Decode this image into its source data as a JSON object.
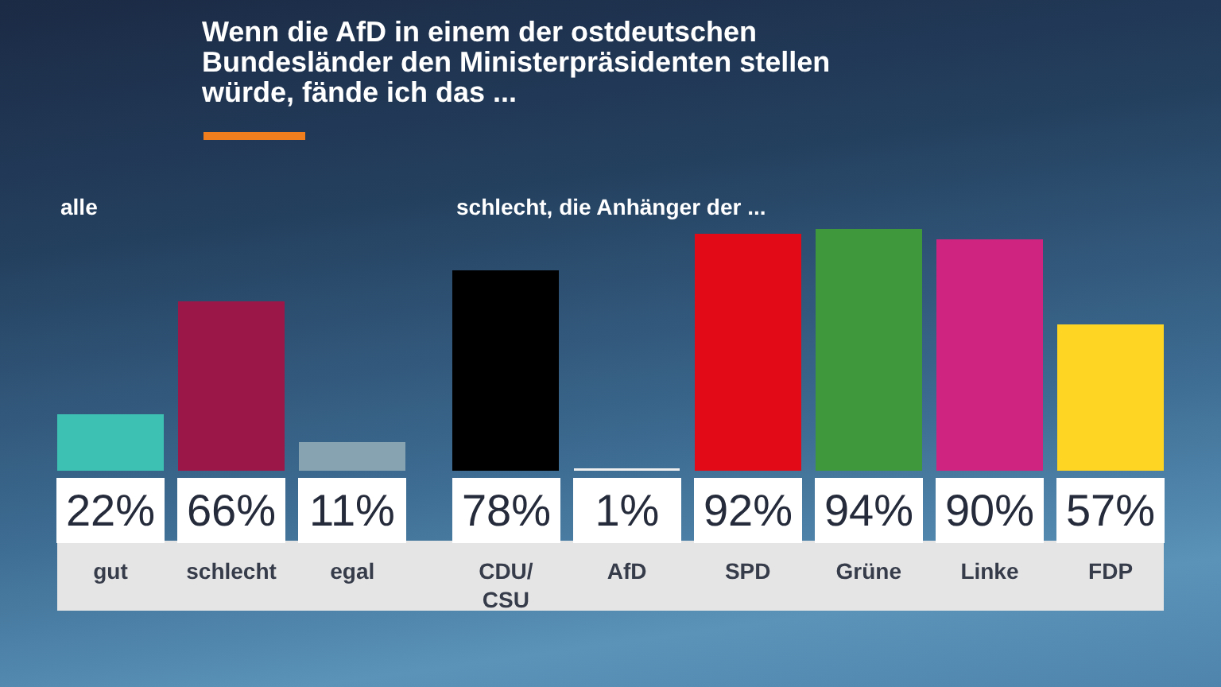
{
  "chart_data": {
    "type": "bar",
    "title": "Wenn die AfD in einem der ostdeutschen Bundesländer den Ministerpräsidenten stellen würde, fände ich das ...",
    "categories": [
      "gut",
      "schlecht",
      "egal",
      "CDU/CSU",
      "AfD",
      "SPD",
      "Grüne",
      "Linke",
      "FDP"
    ],
    "values": [
      22,
      66,
      11,
      78,
      1,
      92,
      94,
      90,
      57
    ],
    "colors": [
      "#3cc1b3",
      "#9a1747",
      "#87a2b0",
      "#000000",
      "#eeeeee",
      "#e30a17",
      "#3f993c",
      "#cf2580",
      "#fed523"
    ],
    "value_labels": [
      "22%",
      "66%",
      "11%",
      "78%",
      "1%",
      "92%",
      "94%",
      "90%",
      "57%"
    ],
    "annotations": [
      "alle",
      "schlecht, die Anhänger der ..."
    ]
  }
}
